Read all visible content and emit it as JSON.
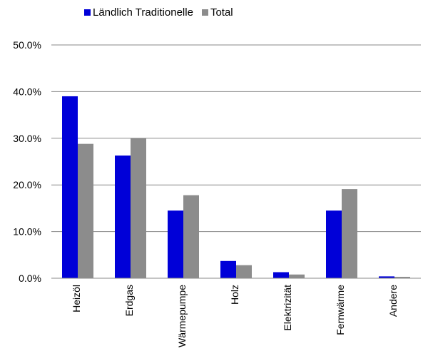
{
  "chart_data": {
    "type": "bar",
    "title": "",
    "xlabel": "",
    "ylabel": "",
    "categories": [
      "Heizöl",
      "Erdgas",
      "Wärmepumpe",
      "Holz",
      "Elektrizität",
      "Fernwärme",
      "Andere"
    ],
    "series": [
      {
        "name": "Ländlich Traditionelle",
        "color": "#0000d8",
        "values": [
          39.0,
          26.3,
          14.5,
          3.7,
          1.3,
          14.5,
          0.4
        ]
      },
      {
        "name": "Total",
        "color": "#8c8c8c",
        "values": [
          28.8,
          30.0,
          17.8,
          2.8,
          0.8,
          19.1,
          0.3
        ]
      }
    ],
    "ylim": [
      0,
      50
    ],
    "yticks": [
      0,
      10,
      20,
      30,
      40,
      50
    ],
    "ytick_labels": [
      "0.0%",
      "10.0%",
      "20.0%",
      "30.0%",
      "40.0%",
      "50.0%"
    ],
    "grid": true,
    "legend_position": "top-left"
  }
}
